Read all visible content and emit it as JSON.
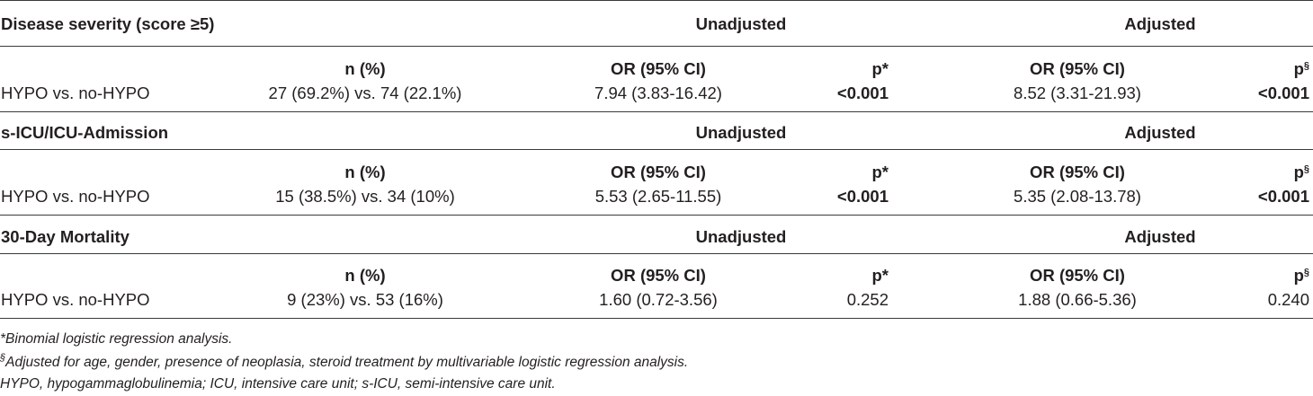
{
  "sections": [
    {
      "title": "Disease severity (score ≥5)",
      "unadjusted_label": "Unadjusted",
      "adjusted_label": "Adjusted",
      "header": {
        "n": "n (%)",
        "or_unadj": "OR (95% CI)",
        "p_unadj": "p*",
        "or_adj": "OR (95% CI)",
        "p_adj": "p",
        "p_adj_sup": "§"
      },
      "row": {
        "comparison": "HYPO vs. no-HYPO",
        "n": "27 (69.2%) vs. 74 (22.1%)",
        "or_unadj": "7.94 (3.83-16.42)",
        "p_unadj": "<0.001",
        "or_adj": "8.52 (3.31-21.93)",
        "p_adj": "<0.001"
      }
    },
    {
      "title": "s-ICU/ICU-Admission",
      "unadjusted_label": "Unadjusted",
      "adjusted_label": "Adjusted",
      "header": {
        "n": "n (%)",
        "or_unadj": "OR (95% CI)",
        "p_unadj": "p*",
        "or_adj": "OR (95% CI)",
        "p_adj": "p",
        "p_adj_sup": "§"
      },
      "row": {
        "comparison": "HYPO vs. no-HYPO",
        "n": "15 (38.5%) vs. 34 (10%)",
        "or_unadj": "5.53 (2.65-11.55)",
        "p_unadj": "<0.001",
        "or_adj": "5.35 (2.08-13.78)",
        "p_adj": "<0.001"
      }
    },
    {
      "title": "30-Day Mortality",
      "unadjusted_label": "Unadjusted",
      "adjusted_label": "Adjusted",
      "header": {
        "n": "n (%)",
        "or_unadj": "OR (95% CI)",
        "p_unadj": "p*",
        "or_adj": "OR (95% CI)",
        "p_adj": "p",
        "p_adj_sup": "§"
      },
      "row": {
        "comparison": "HYPO vs. no-HYPO",
        "n": "9 (23%) vs. 53 (16%)",
        "or_unadj": "1.60 (0.72-3.56)",
        "p_unadj": "0.252",
        "or_adj": "1.88 (0.66-5.36)",
        "p_adj": "0.240"
      }
    }
  ],
  "footnotes": {
    "star": "*Binomial logistic regression analysis.",
    "section_mark": "§",
    "section_text": "Adjusted for age, gender, presence of neoplasia, steroid treatment by multivariable logistic regression analysis.",
    "abbreviations": "HYPO, hypogammaglobulinemia; ICU, intensive care unit; s-ICU, semi-intensive care unit."
  }
}
